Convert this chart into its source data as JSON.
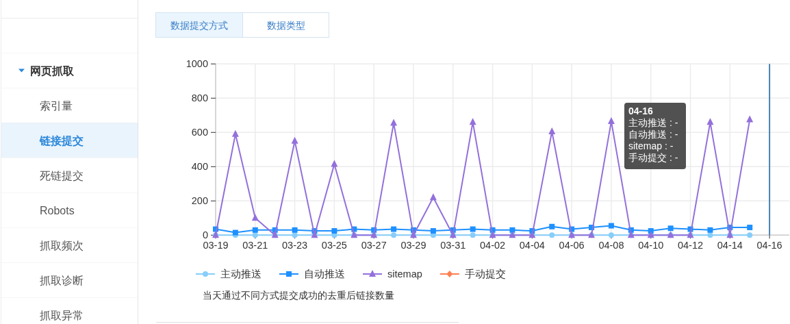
{
  "chart_data": {
    "type": "line",
    "categories": [
      "03-19",
      null,
      "03-21",
      null,
      "03-23",
      null,
      "03-25",
      null,
      "03-27",
      null,
      "03-29",
      null,
      "03-31",
      null,
      "04-02",
      null,
      "04-04",
      null,
      "04-06",
      null,
      "04-08",
      null,
      "04-10",
      null,
      "04-12",
      null,
      "04-14",
      null,
      "04-16"
    ],
    "series": [
      {
        "name": "主动推送",
        "color": "#87cefa",
        "marker": "circle",
        "values": [
          0,
          0,
          0,
          0,
          0,
          0,
          0,
          0,
          0,
          0,
          0,
          0,
          0,
          0,
          0,
          0,
          0,
          0,
          0,
          0,
          0,
          0,
          0,
          0,
          0,
          0,
          0,
          0,
          null
        ]
      },
      {
        "name": "自动推送",
        "color": "#1e90ff",
        "marker": "square",
        "values": [
          35,
          15,
          30,
          30,
          30,
          25,
          25,
          35,
          30,
          35,
          30,
          25,
          30,
          35,
          30,
          30,
          25,
          50,
          35,
          45,
          55,
          30,
          25,
          40,
          35,
          30,
          45,
          45,
          null
        ]
      },
      {
        "name": "sitemap",
        "color": "#9370db",
        "marker": "triangle",
        "values": [
          0,
          590,
          100,
          0,
          550,
          0,
          415,
          0,
          0,
          655,
          0,
          220,
          0,
          660,
          0,
          0,
          0,
          605,
          0,
          0,
          665,
          0,
          0,
          0,
          0,
          660,
          0,
          675,
          null
        ]
      },
      {
        "name": "手动提交",
        "color": "#ff7f50",
        "marker": "diamond",
        "values": [
          null,
          null,
          null,
          null,
          null,
          null,
          null,
          null,
          null,
          null,
          null,
          null,
          null,
          null,
          null,
          null,
          null,
          null,
          null,
          null,
          null,
          null,
          null,
          null,
          null,
          null,
          null,
          null,
          null
        ]
      }
    ],
    "ylim": [
      0,
      1000
    ],
    "yticks": [
      0,
      200,
      400,
      600,
      800,
      1000
    ],
    "grid": true,
    "legend": "bottom",
    "ref_lines": [
      {
        "axis": "x",
        "value": "04-16",
        "color": "#4682b4"
      }
    ],
    "annotations": [
      "网页抓取",
      "索引量",
      "链接提交",
      "死链提交",
      "Robots",
      "抓取频次",
      "抓取诊断",
      "抓取异常",
      "数据提交方式",
      "数据类型",
      "04-16",
      "主动推送 : -",
      "自动推送 : -",
      "sitemap : -",
      "手动提交 : -",
      "当天通过不同方式提交成功的去重后链接数量"
    ]
  }
}
